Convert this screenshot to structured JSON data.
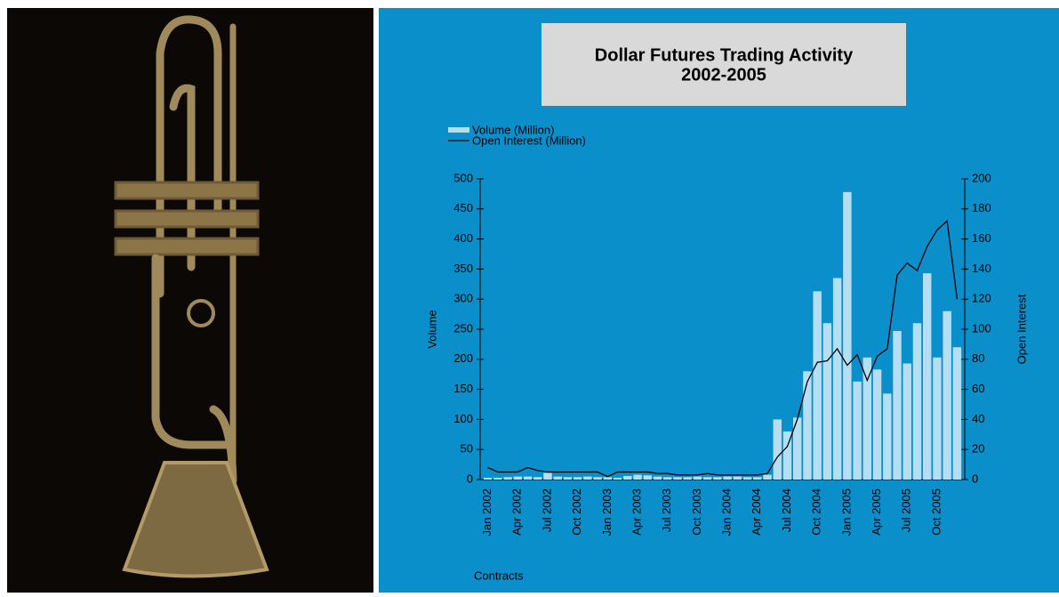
{
  "chart_data": {
    "type": "combo",
    "title": "Dollar Futures Trading Activity",
    "subtitle": "2002-2005",
    "y_label": "Volume",
    "y2_label": "Open Interest",
    "note": "Contracts",
    "categories": [
      "Jan 2002",
      null,
      null,
      "Apr 2002",
      null,
      null,
      "Jul 2002",
      null,
      null,
      "Oct 2002",
      null,
      null,
      "Jan 2003",
      null,
      null,
      "Apr 2003",
      null,
      null,
      "Jul 2003",
      null,
      null,
      "Oct 2003",
      null,
      null,
      "Jan 2004",
      null,
      null,
      "Apr 2004",
      null,
      null,
      "Jul 2004",
      null,
      null,
      "Oct 2004",
      null,
      null,
      "Jan 2005",
      null,
      null,
      "Apr 2005",
      null,
      null,
      "Jul 2005",
      null,
      null,
      "Oct 2005",
      null,
      null
    ],
    "series": [
      {
        "name": "Volume (Million)",
        "type": "bar",
        "color": "#b5def3",
        "values": [
          3,
          3,
          4,
          5,
          5,
          4,
          11,
          5,
          4,
          4,
          5,
          4,
          4,
          3,
          6,
          8,
          7,
          5,
          4,
          4,
          4,
          5,
          4,
          4,
          5,
          5,
          4,
          4,
          8,
          100,
          80,
          103,
          180,
          313,
          260,
          335,
          478,
          163,
          203,
          183,
          143,
          247,
          193,
          260,
          343,
          203,
          280,
          220
        ]
      },
      {
        "name": "Open Interest (Million)",
        "type": "line",
        "axis": "y2",
        "color": "#000000",
        "values": [
          8,
          5,
          5,
          5,
          8,
          6,
          5,
          5,
          5,
          5,
          5,
          5,
          2,
          5,
          5,
          5,
          5,
          4,
          4,
          3,
          3,
          3,
          4,
          3,
          3,
          3,
          3,
          3,
          4,
          15,
          22,
          40,
          65,
          78,
          79,
          87,
          76,
          83,
          66,
          82,
          87,
          136,
          144,
          139,
          155,
          166,
          172,
          120
        ]
      }
    ],
    "ylim": [
      0,
      500
    ],
    "yticks": [
      0,
      50,
      100,
      150,
      200,
      250,
      300,
      350,
      400,
      450,
      500
    ],
    "y2lim": [
      0,
      200
    ],
    "y2ticks": [
      0,
      20,
      40,
      60,
      80,
      100,
      120,
      140,
      160,
      180,
      200
    ]
  }
}
